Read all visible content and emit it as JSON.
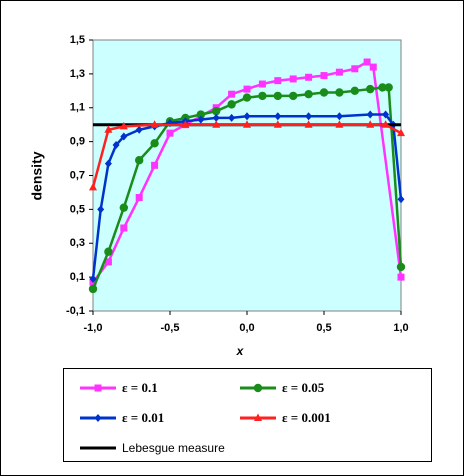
{
  "chart_data": {
    "type": "line",
    "x_label": "x",
    "y_label": "density",
    "xlim": [
      -1.0,
      1.0
    ],
    "xticks": [
      {
        "value": -1.0,
        "label": "-1,0"
      },
      {
        "value": -0.5,
        "label": "-0,5"
      },
      {
        "value": 0.0,
        "label": "0,0"
      },
      {
        "value": 0.5,
        "label": "0,5"
      },
      {
        "value": 1.0,
        "label": "1,0"
      }
    ],
    "ylim": [
      -0.1,
      1.5
    ],
    "yticks": [
      {
        "value": -0.1,
        "label": "-0,1"
      },
      {
        "value": 0.1,
        "label": "0,1"
      },
      {
        "value": 0.3,
        "label": "0,3"
      },
      {
        "value": 0.5,
        "label": "0,5"
      },
      {
        "value": 0.7,
        "label": "0,7"
      },
      {
        "value": 0.9,
        "label": "0,9"
      },
      {
        "value": 1.1,
        "label": "1,1"
      },
      {
        "value": 1.3,
        "label": "1,3"
      },
      {
        "value": 1.5,
        "label": "1,5"
      }
    ],
    "grid": false,
    "plot_background": "#ccffff",
    "legend": "bottom",
    "series": [
      {
        "name": "ε = 0.1",
        "color": "#ff33ff",
        "marker": "square",
        "x": [
          -1.0,
          -0.9,
          -0.8,
          -0.7,
          -0.6,
          -0.5,
          -0.4,
          -0.3,
          -0.2,
          -0.1,
          0.0,
          0.1,
          0.2,
          0.3,
          0.4,
          0.5,
          0.6,
          0.7,
          0.78,
          0.82,
          1.0
        ],
        "values": [
          0.07,
          0.19,
          0.39,
          0.57,
          0.76,
          0.95,
          1.0,
          1.05,
          1.1,
          1.18,
          1.21,
          1.24,
          1.26,
          1.27,
          1.28,
          1.29,
          1.31,
          1.33,
          1.37,
          1.34,
          0.1
        ]
      },
      {
        "name": "ε = 0.05",
        "color": "#1a8c1a",
        "marker": "circle",
        "x": [
          -1.0,
          -0.9,
          -0.8,
          -0.7,
          -0.6,
          -0.5,
          -0.4,
          -0.3,
          -0.2,
          -0.1,
          0.0,
          0.1,
          0.2,
          0.3,
          0.4,
          0.5,
          0.6,
          0.7,
          0.8,
          0.88,
          0.92,
          1.0
        ],
        "values": [
          0.03,
          0.25,
          0.51,
          0.79,
          0.89,
          1.02,
          1.04,
          1.06,
          1.08,
          1.12,
          1.16,
          1.17,
          1.17,
          1.17,
          1.18,
          1.19,
          1.19,
          1.2,
          1.21,
          1.22,
          1.22,
          0.16
        ]
      },
      {
        "name": "ε = 0.01",
        "color": "#0033cc",
        "marker": "diamond",
        "x": [
          -1.0,
          -0.95,
          -0.9,
          -0.85,
          -0.8,
          -0.7,
          -0.6,
          -0.5,
          -0.4,
          -0.3,
          -0.2,
          -0.1,
          0.0,
          0.2,
          0.4,
          0.6,
          0.8,
          0.9,
          0.95,
          1.0
        ],
        "values": [
          0.09,
          0.5,
          0.77,
          0.88,
          0.93,
          0.97,
          0.99,
          1.01,
          1.02,
          1.03,
          1.04,
          1.04,
          1.05,
          1.05,
          1.05,
          1.05,
          1.06,
          1.06,
          1.0,
          0.56
        ]
      },
      {
        "name": "ε = 0.001",
        "color": "#ff2020",
        "marker": "triangle",
        "x": [
          -1.0,
          -0.9,
          -0.8,
          -0.6,
          -0.4,
          -0.2,
          0.0,
          0.2,
          0.4,
          0.6,
          0.8,
          0.9,
          1.0
        ],
        "values": [
          0.63,
          0.97,
          0.99,
          1.0,
          1.0,
          1.0,
          1.0,
          1.0,
          1.0,
          1.0,
          1.0,
          1.0,
          0.95
        ]
      },
      {
        "name": "Lebesgue measure",
        "color": "#000000",
        "marker": "none",
        "x": [
          -1.0,
          1.0
        ],
        "values": [
          1.0,
          1.0
        ]
      }
    ]
  }
}
